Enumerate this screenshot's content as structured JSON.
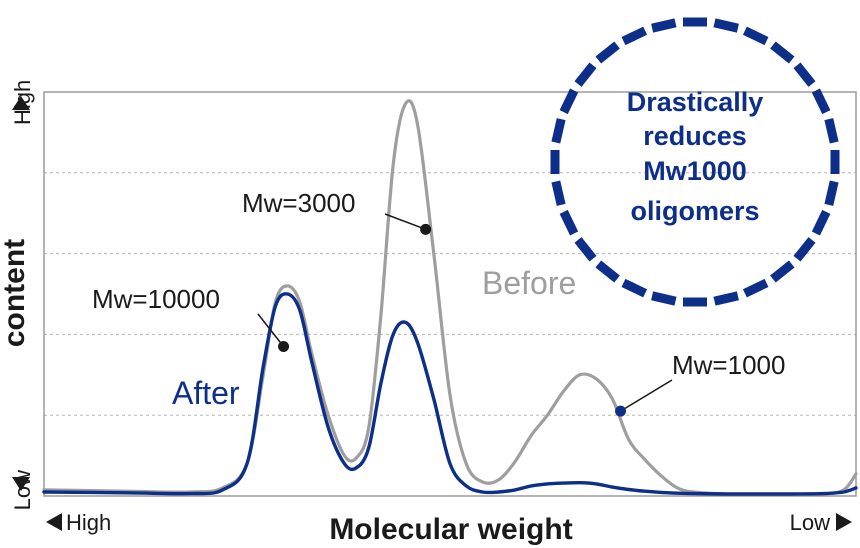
{
  "chart_data": {
    "type": "line",
    "title": "",
    "xlabel": "Molecular weight",
    "ylabel": "content",
    "x_axis": {
      "left_label": "High",
      "right_label": "Low"
    },
    "y_axis": {
      "top_label": "High",
      "bottom_label": "Low"
    },
    "xlim": [
      0,
      100
    ],
    "ylim": [
      0,
      100
    ],
    "grid": "horizontal-dashed",
    "colors": {
      "before": "#9e9e9e",
      "after": "#0d2f8a",
      "badge": "#0d2f8a"
    },
    "series": [
      {
        "name": "Before",
        "x": [
          0,
          10,
          18,
          22,
          25,
          27,
          28.5,
          30,
          31.5,
          33,
          35,
          37,
          38.5,
          40,
          41.5,
          43,
          44.5,
          46,
          48,
          50,
          52,
          54,
          56,
          58,
          60,
          62,
          64,
          66,
          68,
          70,
          72,
          74,
          76,
          78,
          80,
          84,
          88,
          92,
          96,
          98.5,
          100
        ],
        "values": [
          1.5,
          1.2,
          1.0,
          2.0,
          8.0,
          30.0,
          48.0,
          52.0,
          48.0,
          35.0,
          20.0,
          10.0,
          9.5,
          17.0,
          45.0,
          82.0,
          97.0,
          92.0,
          60.0,
          25.0,
          8.0,
          3.5,
          4.0,
          8.5,
          15.0,
          20.0,
          26.0,
          30.0,
          29.0,
          24.0,
          14.0,
          9.0,
          5.0,
          2.0,
          1.0,
          0.5,
          0.3,
          0.3,
          0.5,
          1.5,
          5.5
        ]
      },
      {
        "name": "After",
        "x": [
          0,
          10,
          18,
          22,
          25,
          27,
          28.5,
          30,
          31.5,
          33,
          35,
          37,
          38.5,
          40,
          41.5,
          43,
          44.5,
          46,
          48,
          50,
          52,
          54,
          56,
          58,
          60,
          62,
          64,
          66,
          68,
          70,
          72,
          74,
          76,
          78,
          80,
          84,
          88,
          92,
          96,
          98.5,
          100
        ],
        "values": [
          1.0,
          0.8,
          0.6,
          1.5,
          8.0,
          32.0,
          47.0,
          50.0,
          46.0,
          33.0,
          17.0,
          8.0,
          7.0,
          12.0,
          28.0,
          40.0,
          43.0,
          38.0,
          24.0,
          8.0,
          2.5,
          1.0,
          1.0,
          1.5,
          2.5,
          3.0,
          3.2,
          3.3,
          3.0,
          2.2,
          1.6,
          1.2,
          0.9,
          0.7,
          0.6,
          0.5,
          0.5,
          0.5,
          0.6,
          1.0,
          2.0
        ]
      }
    ],
    "annotations": [
      {
        "text": "Mw=3000",
        "x": 47,
        "y": 66
      },
      {
        "text": "Mw=10000",
        "x": 29.5,
        "y": 37
      },
      {
        "text": "Mw=1000",
        "x": 71,
        "y": 21
      }
    ],
    "series_labels": [
      {
        "series": "Before",
        "text": "Before"
      },
      {
        "series": "After",
        "text": "After"
      }
    ],
    "callout": {
      "lines": [
        "Drastically",
        "reduces",
        "Mw1000",
        "oligomers"
      ]
    }
  }
}
